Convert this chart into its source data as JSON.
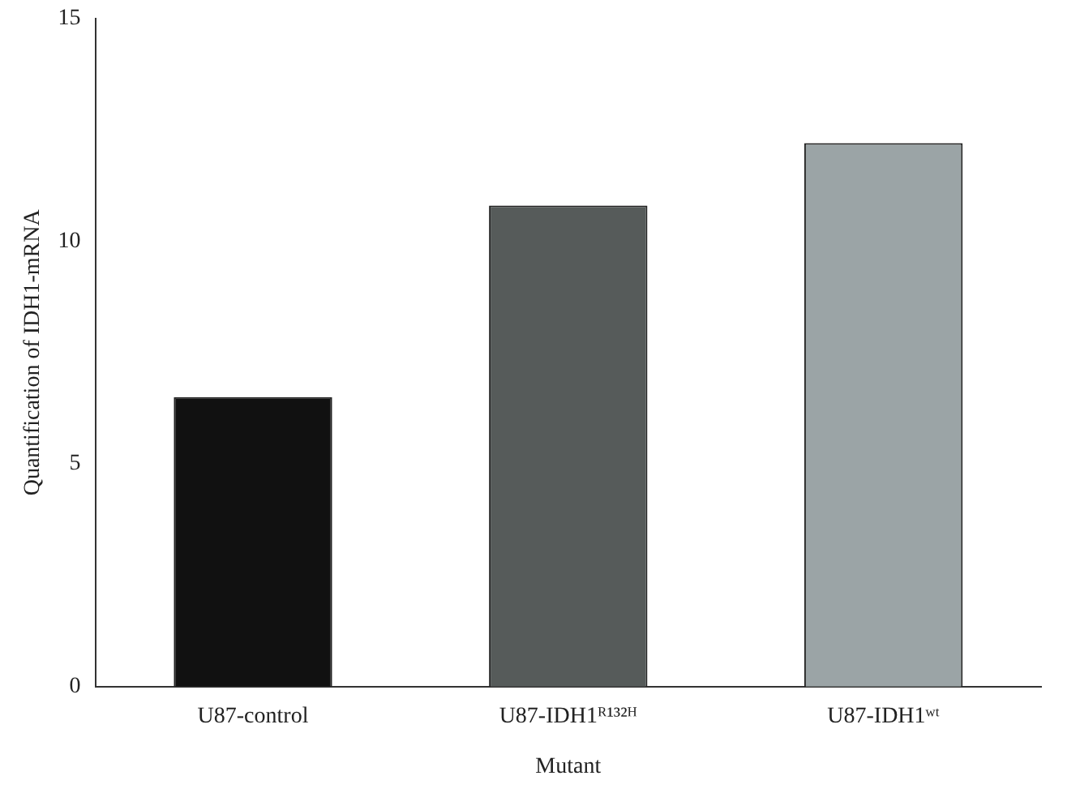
{
  "chart_data": {
    "type": "bar",
    "xlabel": "Mutant",
    "ylabel": "Quantification of IDH1-mRNA",
    "categories": [
      "U87-control",
      "U87-IDH1ᴿ¹³²ᴴ",
      "U87-IDH1ʷᵗ"
    ],
    "values": [
      6.5,
      10.8,
      12.2
    ],
    "colors": [
      "#111111",
      "#565b5a",
      "#9ba4a6"
    ],
    "ylim": [
      0,
      15
    ],
    "yticks": [
      0,
      5,
      10,
      15
    ],
    "grid": false,
    "legend": false
  }
}
